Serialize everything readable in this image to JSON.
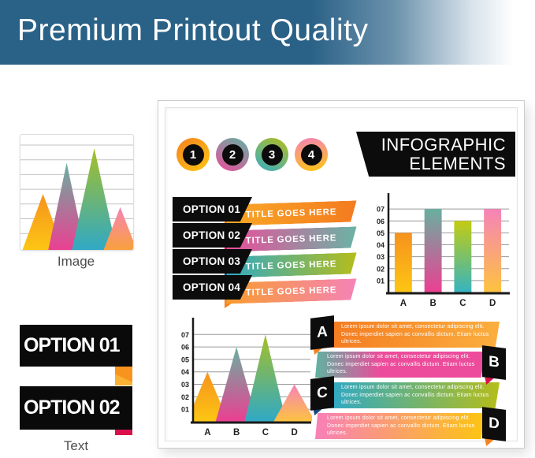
{
  "header": {
    "title": "Premium Printout Quality",
    "bg_color": "#2a6187"
  },
  "left_samples": {
    "image_label": "Image",
    "text_label": "Text",
    "text_banners": [
      "OPTION 01",
      "OPTION 02"
    ],
    "fold_color": "#f7941e",
    "sliver_color": "#d8104b"
  },
  "poster": {
    "badges": [
      {
        "num": "1",
        "grad": [
          "#f58220",
          "#fdc511"
        ]
      },
      {
        "num": "2",
        "grad": [
          "#5fb3a1",
          "#ec4c9b"
        ]
      },
      {
        "num": "3",
        "grad": [
          "#b5bd1a",
          "#35aec5"
        ]
      },
      {
        "num": "4",
        "grad": [
          "#f583b8",
          "#fdc511"
        ]
      }
    ],
    "title_line1": "INFOGRAPHIC",
    "title_line2": "ELEMENTS",
    "options": [
      {
        "label": "OPTION 01",
        "title": "TITLE GOES HERE",
        "ribbon": [
          "#f9a825",
          "#f47b20"
        ],
        "fold": "#f58220"
      },
      {
        "label": "OPTION 02",
        "title": "TITLE GOES HERE",
        "ribbon": [
          "#ec4c9b",
          "#6ab3a4"
        ],
        "fold": "#d8104b"
      },
      {
        "label": "OPTION 03",
        "title": "TITLE GOES HERE",
        "ribbon": [
          "#2fa9c6",
          "#b5bd1a"
        ],
        "fold": "#16477c"
      },
      {
        "label": "OPTION 04",
        "title": "TITLE GOES HERE",
        "ribbon": [
          "#f89c2e",
          "#f583b8"
        ],
        "fold": "#f58220"
      }
    ],
    "lorem": "Lorem ipsum dolor sit amet, consectetur adipiscing elit. Donec imperdiet sapien ac convallis dictum. Etiam luctus ultrices.",
    "callouts": [
      {
        "letter": "A",
        "side": "left",
        "banner": [
          "#f47b20",
          "#fbaf3f"
        ],
        "fold": "#f58220"
      },
      {
        "letter": "B",
        "side": "right",
        "banner": [
          "#5fb3a1",
          "#ec4c9b"
        ],
        "mid": "38%",
        "fold": "#d8104b"
      },
      {
        "letter": "C",
        "side": "left",
        "banner": [
          "#2fa9c6",
          "#b5bd1a"
        ],
        "fold": "#16477c"
      },
      {
        "letter": "D",
        "side": "right",
        "banner": [
          "#f87fb9",
          "#fdc511"
        ],
        "fold": "#f58220"
      }
    ]
  },
  "chart_data": [
    {
      "id": "poster-bar-chart",
      "type": "bar",
      "categories": [
        "A",
        "B",
        "C",
        "D"
      ],
      "values": [
        5,
        7,
        6,
        7
      ],
      "ytick_labels": [
        "01",
        "02",
        "03",
        "04",
        "05",
        "06",
        "07"
      ],
      "ylim": [
        0,
        7
      ],
      "grid": true,
      "legend": false,
      "title": "",
      "xlabel": "",
      "ylabel": "",
      "gradients_top_bottom": [
        [
          "#f6921e",
          "#fdc613"
        ],
        [
          "#68b0a0",
          "#ec3f92"
        ],
        [
          "#c3cc12",
          "#35b4c1"
        ],
        [
          "#f583b8",
          "#fdc33f"
        ]
      ]
    },
    {
      "id": "poster-peak-chart",
      "type": "area",
      "subtype": "overlapping-triangles",
      "categories": [
        "A",
        "B",
        "C",
        "D"
      ],
      "values": [
        4,
        6,
        7,
        3
      ],
      "ytick_labels": [
        "01",
        "02",
        "03",
        "04",
        "05",
        "06",
        "07"
      ],
      "ylim": [
        0,
        7
      ],
      "grid": true,
      "legend": false,
      "title": "",
      "gradients_top_bottom": [
        [
          "#f6921e",
          "#fdc613"
        ],
        [
          "#68b0a0",
          "#ec3f92"
        ],
        [
          "#a6bf27",
          "#2fa9c6"
        ],
        [
          "#f583b8",
          "#fdc33f"
        ]
      ]
    },
    {
      "id": "image-sample-chart",
      "type": "area",
      "subtype": "overlapping-triangles",
      "categories": null,
      "values": [
        3.8,
        5.9,
        6.9,
        2.9
      ],
      "grid": true,
      "gridline_count": 7,
      "axes": false,
      "centers_frac": [
        0.2,
        0.41,
        0.655,
        0.885
      ],
      "half_base_frac": [
        0.185,
        0.165,
        0.2,
        0.15
      ],
      "gradients_top_bottom": [
        [
          "#f6921e",
          "#fdc613"
        ],
        [
          "#68b0a0",
          "#ec3f92"
        ],
        [
          "#a6bf27",
          "#2fa9c6"
        ],
        [
          "#f583b8",
          "#f9a13a"
        ]
      ]
    }
  ]
}
